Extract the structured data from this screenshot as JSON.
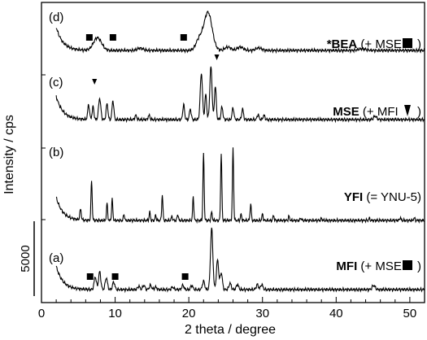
{
  "chart_data": {
    "type": "line",
    "xlabel": "2 theta  / degree",
    "ylabel": "Intensity / cps",
    "scale_bar_label": "5000",
    "xlim": [
      0,
      52
    ],
    "xticks": [
      0,
      10,
      20,
      30,
      40,
      50
    ],
    "series": [
      {
        "panel": "(d)",
        "label_bold": "*BEA",
        "label_rest": " (+ MSE ",
        "label_end": ")",
        "marker": "square",
        "marker_x": [
          6.5,
          9.7,
          19.3
        ],
        "peaks": [
          [
            7.6,
            0.3,
            0.55
          ],
          [
            13.4,
            0.05,
            0.4
          ],
          [
            21.4,
            0.25,
            0.45
          ],
          [
            22.6,
            0.9,
            0.55
          ],
          [
            25.3,
            0.08,
            0.4
          ],
          [
            27.0,
            0.08,
            0.4
          ],
          [
            29.5,
            0.06,
            0.4
          ],
          [
            43.5,
            0.04,
            0.5
          ]
        ]
      },
      {
        "panel": "(c)",
        "label_bold": "MSE",
        "label_rest": " (+ MFI ",
        "label_end": " )",
        "marker": "triangle",
        "marker_x": [
          7.2,
          23.8
        ],
        "peaks": [
          [
            6.4,
            0.35,
            0.12
          ],
          [
            7.0,
            0.3,
            0.12
          ],
          [
            7.9,
            0.5,
            0.15
          ],
          [
            8.9,
            0.38,
            0.12
          ],
          [
            9.7,
            0.45,
            0.12
          ],
          [
            12.8,
            0.1,
            0.12
          ],
          [
            14.6,
            0.1,
            0.12
          ],
          [
            19.3,
            0.35,
            0.12
          ],
          [
            20.2,
            0.25,
            0.12
          ],
          [
            21.7,
            1.1,
            0.15
          ],
          [
            22.3,
            0.6,
            0.12
          ],
          [
            23.0,
            1.25,
            0.15
          ],
          [
            23.6,
            0.8,
            0.12
          ],
          [
            24.5,
            0.3,
            0.12
          ],
          [
            26.0,
            0.28,
            0.12
          ],
          [
            27.3,
            0.25,
            0.12
          ],
          [
            29.4,
            0.12,
            0.12
          ],
          [
            30.2,
            0.1,
            0.12
          ],
          [
            45.3,
            0.08,
            0.2
          ]
        ]
      },
      {
        "panel": "(b)",
        "label_bold": "YFI",
        "label_rest": " (= YNU-5)",
        "label_end": "",
        "marker": "none",
        "marker_x": [],
        "peaks": [
          [
            5.3,
            0.25,
            0.1
          ],
          [
            6.8,
            0.95,
            0.08
          ],
          [
            8.9,
            0.4,
            0.08
          ],
          [
            9.6,
            0.5,
            0.08
          ],
          [
            11.2,
            0.15,
            0.08
          ],
          [
            14.7,
            0.2,
            0.08
          ],
          [
            15.5,
            0.12,
            0.08
          ],
          [
            16.4,
            0.6,
            0.08
          ],
          [
            17.7,
            0.1,
            0.08
          ],
          [
            18.5,
            0.15,
            0.08
          ],
          [
            20.6,
            0.55,
            0.08
          ],
          [
            22.0,
            1.6,
            0.08
          ],
          [
            23.1,
            0.2,
            0.08
          ],
          [
            24.4,
            1.6,
            0.08
          ],
          [
            26.0,
            1.7,
            0.08
          ],
          [
            27.1,
            0.15,
            0.08
          ],
          [
            28.4,
            0.4,
            0.08
          ],
          [
            30.0,
            0.15,
            0.08
          ],
          [
            31.5,
            0.12,
            0.08
          ],
          [
            33.6,
            0.1,
            0.08
          ],
          [
            35.2,
            0.06,
            0.08
          ],
          [
            38.0,
            0.05,
            0.08
          ],
          [
            44.5,
            0.05,
            0.08
          ],
          [
            48.7,
            0.07,
            0.08
          ],
          [
            50.6,
            0.06,
            0.08
          ]
        ]
      },
      {
        "panel": "(a)",
        "label_bold": "MFI",
        "label_rest": " (+ MSE ",
        "label_end": ")",
        "marker": "square",
        "marker_x": [
          6.6,
          10.0,
          19.5
        ],
        "peaks": [
          [
            7.3,
            0.3,
            0.15
          ],
          [
            7.9,
            0.42,
            0.15
          ],
          [
            8.8,
            0.28,
            0.15
          ],
          [
            9.8,
            0.18,
            0.15
          ],
          [
            13.2,
            0.08,
            0.15
          ],
          [
            13.9,
            0.1,
            0.15
          ],
          [
            14.8,
            0.1,
            0.15
          ],
          [
            15.5,
            0.06,
            0.15
          ],
          [
            17.8,
            0.06,
            0.15
          ],
          [
            19.2,
            0.1,
            0.15
          ],
          [
            20.4,
            0.1,
            0.15
          ],
          [
            22.0,
            0.2,
            0.15
          ],
          [
            23.1,
            1.45,
            0.16
          ],
          [
            23.9,
            0.7,
            0.15
          ],
          [
            24.4,
            0.4,
            0.15
          ],
          [
            25.6,
            0.15,
            0.15
          ],
          [
            26.6,
            0.12,
            0.15
          ],
          [
            29.3,
            0.12,
            0.15
          ],
          [
            29.9,
            0.12,
            0.15
          ],
          [
            45.1,
            0.1,
            0.2
          ]
        ]
      }
    ]
  }
}
